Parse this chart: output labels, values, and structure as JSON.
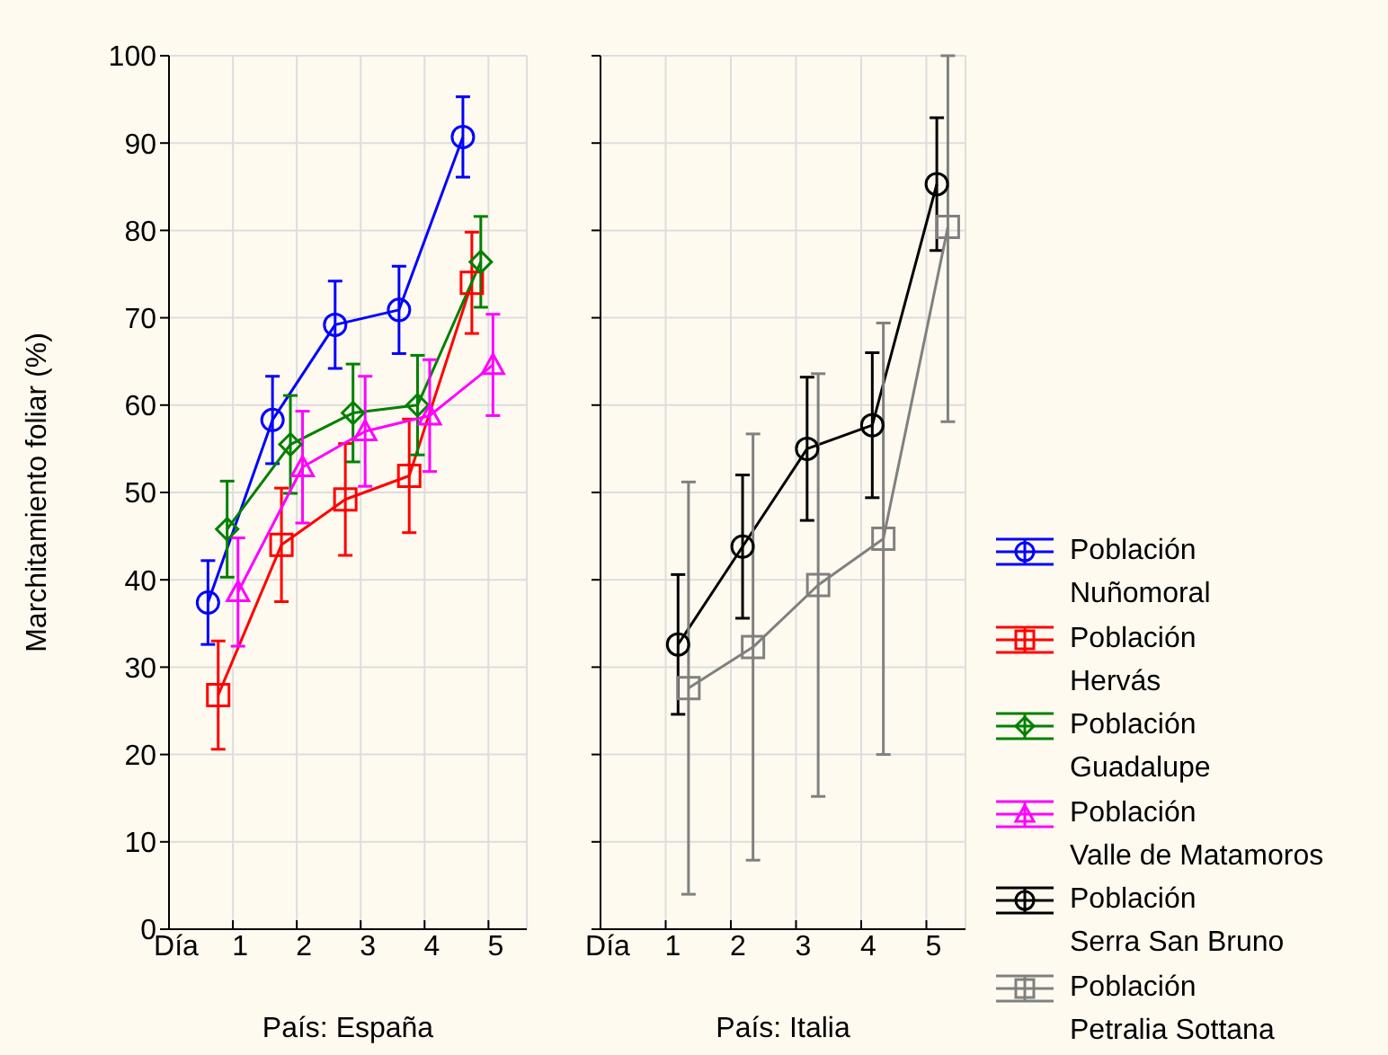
{
  "chart_data": [
    {
      "type": "line",
      "ylabel": "Marchitamiento foliar (%)",
      "xlabel": "País: España",
      "xlim": [
        0,
        5.6
      ],
      "xticks": [
        {
          "value": 0,
          "label": "Día"
        },
        1,
        2,
        3,
        4,
        5
      ],
      "ylim": [
        0,
        100
      ],
      "yticks": [
        0,
        10,
        20,
        30,
        40,
        50,
        60,
        70,
        80,
        90,
        100
      ],
      "grid": true,
      "legend": "right",
      "series": [
        {
          "name": "Población Nuñomoral",
          "color": "#0000ff",
          "marker": "circle",
          "x": [
            0.61,
            1.62,
            2.6,
            3.6,
            4.6
          ],
          "values": [
            37.4,
            58.3,
            69.2,
            70.9,
            90.7
          ],
          "errors": [
            4.8,
            5,
            5,
            5,
            4.6
          ]
        },
        {
          "name": "Población Hervás",
          "color": "#ff0000",
          "marker": "square",
          "x": [
            0.77,
            1.76,
            2.76,
            3.76,
            4.74
          ],
          "values": [
            26.8,
            44.0,
            49.2,
            51.9,
            74.0
          ],
          "errors": [
            6.2,
            6.5,
            6.4,
            6.5,
            5.8
          ]
        },
        {
          "name": "Población Guadalupe",
          "color": "#008000",
          "marker": "diamond",
          "x": [
            0.91,
            1.9,
            2.88,
            3.89,
            4.88
          ],
          "values": [
            45.8,
            55.5,
            59.1,
            60.0,
            76.4
          ],
          "errors": [
            5.5,
            5.6,
            5.6,
            5.7,
            5.2
          ]
        },
        {
          "name": "Población Valle de Matamoros",
          "color": "#ff00ff",
          "marker": "triangle",
          "x": [
            1.08,
            2.09,
            3.07,
            4.08,
            5.07
          ],
          "values": [
            38.6,
            52.9,
            57.0,
            58.8,
            64.6
          ],
          "errors": [
            6.2,
            6.4,
            6.3,
            6.4,
            5.8
          ]
        }
      ]
    },
    {
      "type": "line",
      "xlabel": "País: Italia",
      "xlim": [
        0,
        5.6
      ],
      "xticks": [
        {
          "value": 0,
          "label": "Día"
        },
        1,
        2,
        3,
        4,
        5
      ],
      "ylim": [
        0,
        100
      ],
      "yticks": [
        0,
        10,
        20,
        30,
        40,
        50,
        60,
        70,
        80,
        90,
        100
      ],
      "tick_labels": "x",
      "grid": true,
      "legend": "right",
      "series": [
        {
          "name": "Población Serra San Bruno",
          "color": "#000000",
          "marker": "circle",
          "x": [
            1.19,
            2.18,
            3.17,
            4.17,
            5.16
          ],
          "values": [
            32.6,
            43.8,
            55.0,
            57.7,
            85.3
          ],
          "errors": [
            8,
            8.2,
            8.2,
            8.3,
            7.6
          ]
        },
        {
          "name": "Población Petralia Sottana",
          "color": "#808080",
          "marker": "square",
          "x": [
            1.35,
            2.34,
            3.34,
            4.34,
            5.33
          ],
          "values": [
            27.6,
            32.3,
            39.4,
            44.7,
            80.4
          ],
          "errors": [
            23.6,
            24.4,
            24.2,
            24.7,
            [
              58.1,
              100
            ]
          ]
        }
      ]
    }
  ]
}
